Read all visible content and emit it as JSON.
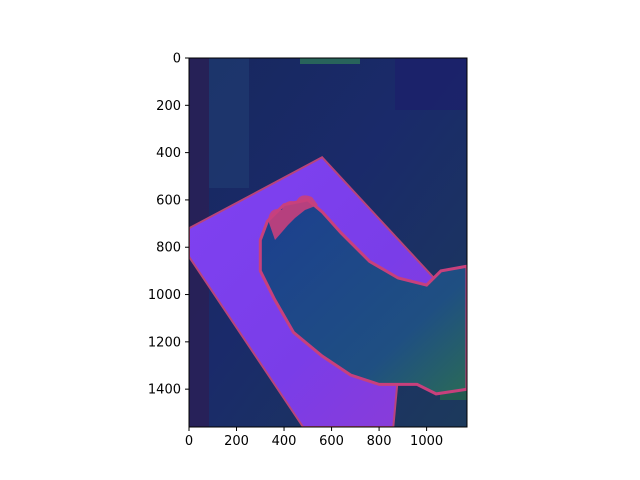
{
  "chart_data": {
    "type": "image",
    "title": "",
    "xlabel": "",
    "ylabel": "",
    "xlim": [
      0,
      1170
    ],
    "ylim": [
      1560,
      0
    ],
    "x_ticks": [
      0,
      200,
      400,
      600,
      800,
      1000
    ],
    "y_ticks": [
      0,
      200,
      400,
      600,
      800,
      1000,
      1200,
      1400
    ],
    "grid": false,
    "image": {
      "description_colors": {
        "background": "#1c2a66",
        "background_dark": "#141f52",
        "background_green": "#1f5a54",
        "board": "#7a3df0",
        "board_shade": "#8a3fe8",
        "board_edge": "#b0427a",
        "foot": "#1c4f8a",
        "foot_outline": "#c8407c",
        "ankle": "#2a6a5a"
      },
      "board_polygon": [
        [
          0,
          720
        ],
        [
          560,
          420
        ],
        [
          1040,
          940
        ],
        [
          880,
          1340
        ],
        [
          860,
          1560
        ],
        [
          480,
          1560
        ],
        [
          0,
          840
        ]
      ],
      "foot_polygon": [
        [
          330,
          690
        ],
        [
          400,
          620
        ],
        [
          500,
          600
        ],
        [
          560,
          650
        ],
        [
          640,
          740
        ],
        [
          760,
          860
        ],
        [
          880,
          930
        ],
        [
          1000,
          960
        ],
        [
          1060,
          900
        ],
        [
          1170,
          880
        ],
        [
          1170,
          1400
        ],
        [
          1040,
          1420
        ],
        [
          960,
          1380
        ],
        [
          800,
          1380
        ],
        [
          680,
          1340
        ],
        [
          560,
          1260
        ],
        [
          440,
          1160
        ],
        [
          360,
          1020
        ],
        [
          300,
          900
        ],
        [
          300,
          770
        ]
      ]
    }
  }
}
